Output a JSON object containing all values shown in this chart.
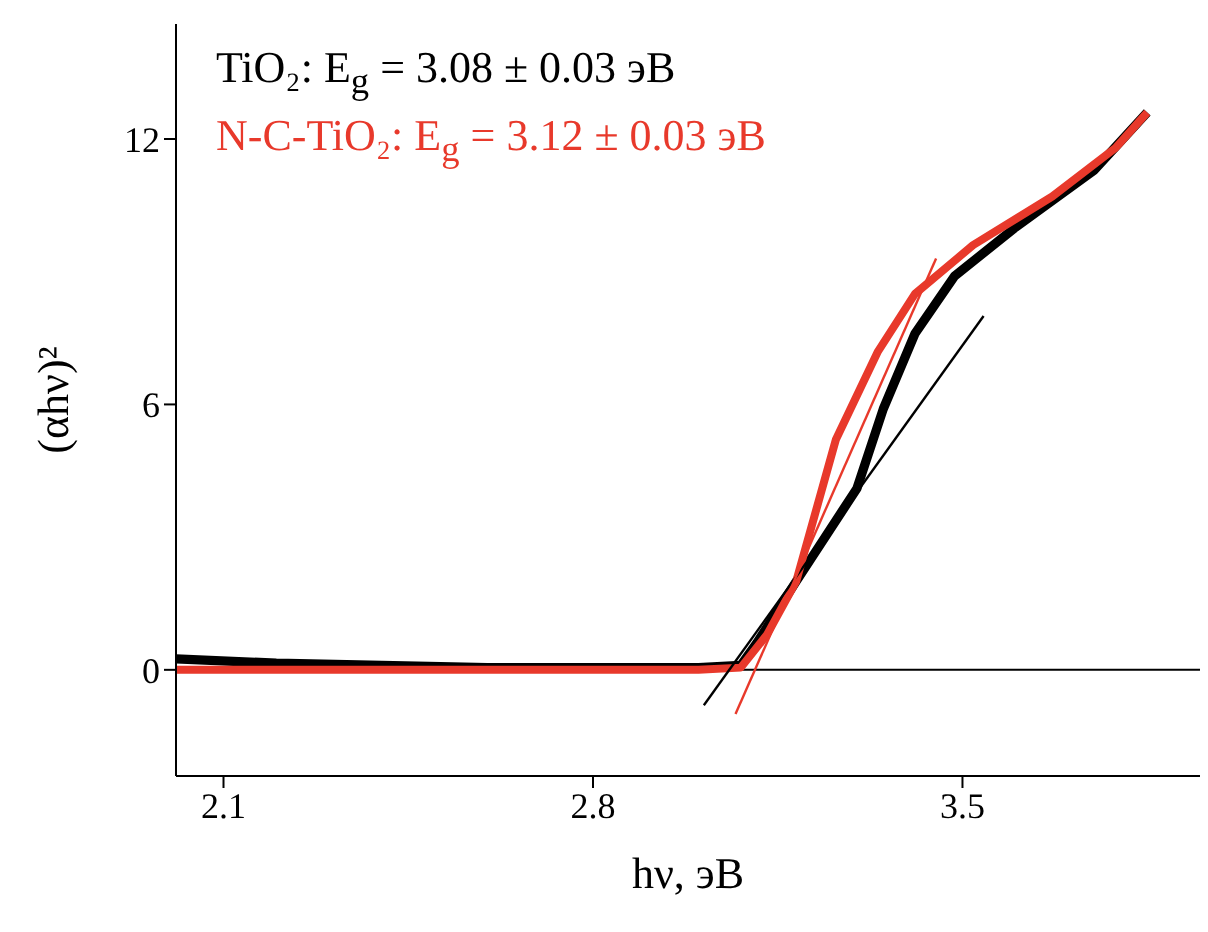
{
  "chart_data": {
    "type": "line",
    "xlabel": "hν, эВ",
    "ylabel": "(αhν)²",
    "xlim": [
      2.01,
      3.95
    ],
    "xticks": [
      2.1,
      2.8,
      3.5
    ],
    "ylim": [
      -2.4,
      14.6
    ],
    "yticks": [
      0,
      6,
      12
    ],
    "legend": "top left",
    "marker": "none",
    "line_style": "solid",
    "series": [
      {
        "name": "TiO₂: E$_{g}$ = 3.08 ± 0.03 эВ",
        "color": "#000000",
        "x": [
          2.01,
          2.2,
          2.4,
          2.6,
          2.8,
          3.0,
          3.08,
          3.11,
          3.185,
          3.3,
          3.35,
          3.41,
          3.485,
          3.6,
          3.75,
          3.85
        ],
        "values": [
          0.25,
          0.15,
          0.1,
          0.05,
          0.05,
          0.05,
          0.1,
          0.6,
          2.0,
          4.1,
          5.9,
          7.6,
          8.9,
          10.0,
          11.3,
          12.6
        ]
      },
      {
        "name": "N-C-TiO₂: E$_{g}$ = 3.12 ± 0.03 эВ",
        "color": "#e8392b",
        "x": [
          2.01,
          2.2,
          2.4,
          2.6,
          2.8,
          3.0,
          3.08,
          3.13,
          3.185,
          3.26,
          3.34,
          3.41,
          3.52,
          3.67,
          3.79,
          3.85
        ],
        "values": [
          0.0,
          0.0,
          0.0,
          0.0,
          0.0,
          0.0,
          0.05,
          0.8,
          2.0,
          5.2,
          7.2,
          8.5,
          9.6,
          10.7,
          11.8,
          12.6
        ]
      },
      {
        "color": "#000000",
        "x": [
          3.01,
          3.54
        ],
        "values": [
          -0.8,
          8.0
        ]
      },
      {
        "color": "#e8392b",
        "x": [
          3.07,
          3.45
        ],
        "values": [
          -1.0,
          9.3
        ]
      }
    ],
    "ref_lines": [
      {
        "axis": "y",
        "value": 0,
        "color": "#000000"
      }
    ]
  }
}
